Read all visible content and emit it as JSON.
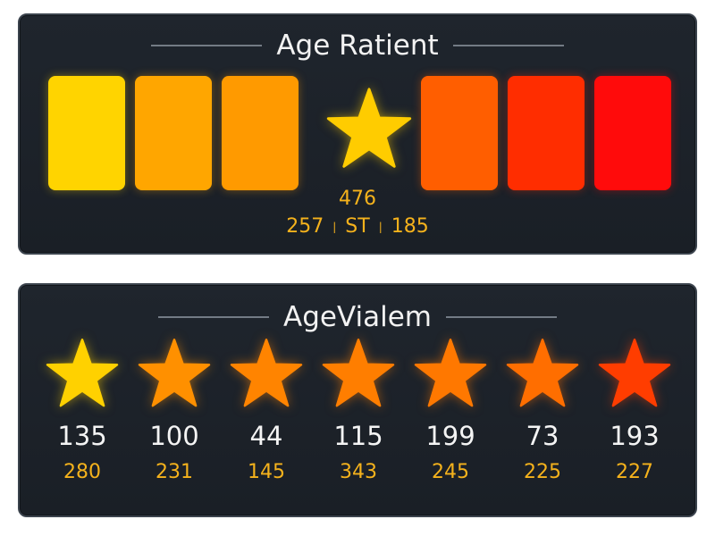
{
  "top_panel": {
    "title": "Age Ratient",
    "blocks_left": [
      {
        "color": "#ffd400"
      },
      {
        "color": "#ffa600"
      },
      {
        "color": "#ff9a00"
      }
    ],
    "center_star": {
      "icon": "star-icon",
      "color": "#ffcc00"
    },
    "blocks_right": [
      {
        "color": "#ff5e00"
      },
      {
        "color": "#ff2d00"
      },
      {
        "color": "#ff0b0b"
      }
    ],
    "total": "476",
    "split_left": "257",
    "split_sep": "|",
    "split_mid": "ST",
    "split_right": "185",
    "value_color": "#f5b21c"
  },
  "bottom_panel": {
    "title": "AgeVialem",
    "items": [
      {
        "icon": "star-icon",
        "color": "#ffd100",
        "primary": "135",
        "secondary": "280"
      },
      {
        "icon": "star-icon",
        "color": "#ff9000",
        "primary": "100",
        "secondary": "231"
      },
      {
        "icon": "star-icon",
        "color": "#ff8400",
        "primary": "44",
        "secondary": "145"
      },
      {
        "icon": "star-icon",
        "color": "#ff7e00",
        "primary": "115",
        "secondary": "343"
      },
      {
        "icon": "star-icon",
        "color": "#ff7800",
        "primary": "199",
        "secondary": "245"
      },
      {
        "icon": "star-icon",
        "color": "#ff6e00",
        "primary": "73",
        "secondary": "225"
      },
      {
        "icon": "star-icon",
        "color": "#ff3d00",
        "primary": "193",
        "secondary": "227"
      }
    ],
    "secondary_color": "#f5b21c"
  }
}
